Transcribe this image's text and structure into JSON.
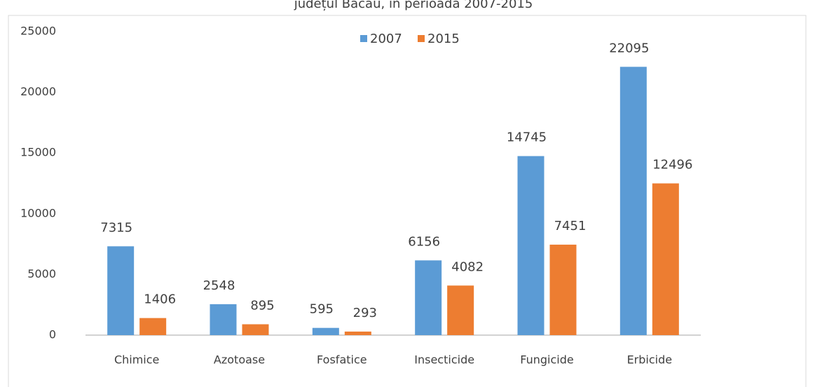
{
  "chart_data": {
    "type": "bar",
    "title": "județul Bacău, în perioada 2007-2015",
    "categories": [
      "Chimice",
      "Azotoase",
      "Fosfatice",
      "Insecticide",
      "Fungicide",
      "Erbicide"
    ],
    "series": [
      {
        "name": "2007",
        "color": "#5b9bd5",
        "values": [
          7315,
          2548,
          595,
          6156,
          14745,
          22095
        ]
      },
      {
        "name": "2015",
        "color": "#ed7d31",
        "values": [
          1406,
          895,
          293,
          4082,
          7451,
          12496
        ]
      }
    ],
    "ylim": [
      0,
      25000
    ],
    "yticks": [
      0,
      5000,
      10000,
      15000,
      20000,
      25000
    ],
    "grid": false,
    "legend": "top"
  }
}
